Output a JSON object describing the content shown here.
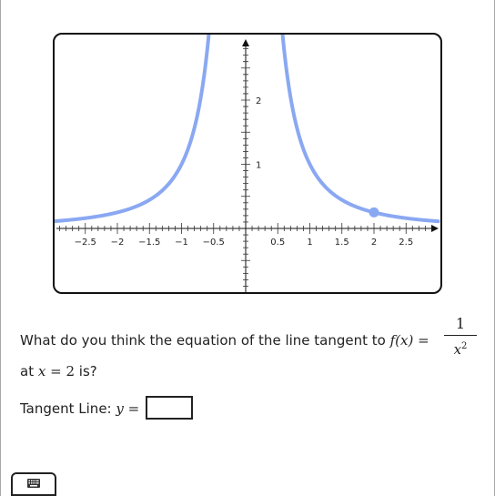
{
  "graph": {
    "function": "1/x^2",
    "curve_color": "#8aa8f2",
    "x_range": [
      -3,
      3
    ],
    "y_range": [
      -1,
      3
    ],
    "x_minor_step": 0.1,
    "y_minor_step": 0.1,
    "x_tick_labels": [
      {
        "v": -2.5,
        "t": "−2.5"
      },
      {
        "v": -2,
        "t": "−2"
      },
      {
        "v": -1.5,
        "t": "−1.5"
      },
      {
        "v": -1,
        "t": "−1"
      },
      {
        "v": -0.5,
        "t": "−0.5"
      },
      {
        "v": 0.5,
        "t": "0.5"
      },
      {
        "v": 1,
        "t": "1"
      },
      {
        "v": 1.5,
        "t": "1.5"
      },
      {
        "v": 2,
        "t": "2"
      },
      {
        "v": 2.5,
        "t": "2.5"
      }
    ],
    "y_tick_labels": [
      {
        "v": 1,
        "t": "1"
      },
      {
        "v": 2,
        "t": "2"
      }
    ],
    "point": {
      "x": 2,
      "y": 0.25
    }
  },
  "question": {
    "text_before": "What do you think the equation of the line tangent to",
    "f_of_x": "f(x)",
    "equals": "=",
    "frac_num": "1",
    "frac_den": "x",
    "frac_den_exp": "2",
    "line2_at": "at",
    "line2_math": "x",
    "line2_eq": "= 2",
    "line2_end": "is?"
  },
  "answer": {
    "label": "Tangent Line:",
    "var": "y",
    "eq": "=",
    "value": ""
  },
  "keyboard": {
    "icon": "keyboard-icon"
  }
}
